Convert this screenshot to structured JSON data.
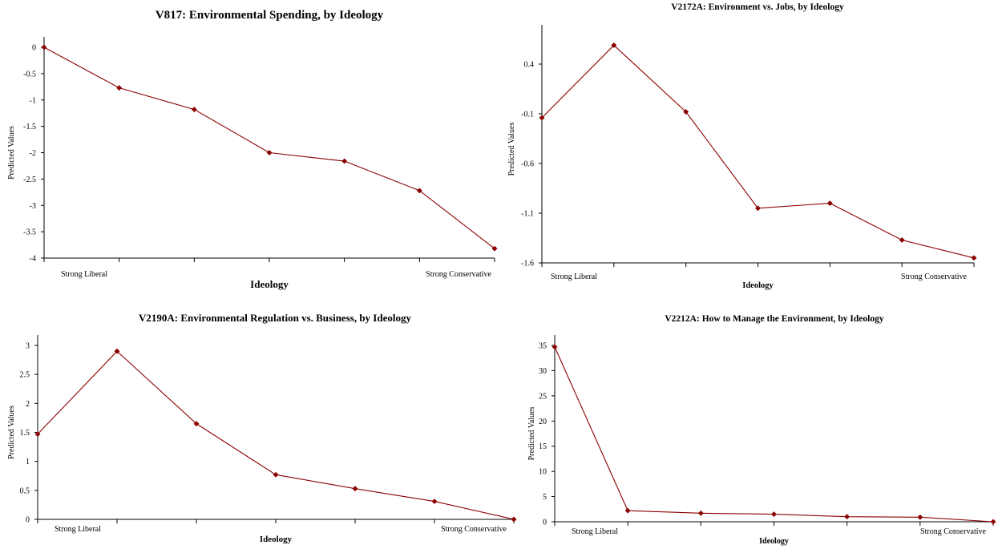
{
  "colors": {
    "series": "#8b0000",
    "axis": "#000000",
    "background": "#ffffff"
  },
  "chart_data": [
    {
      "type": "line",
      "title": "V817:  Environmental Spending, by Ideology",
      "xlabel": "Ideology",
      "ylabel": "Predicted Values",
      "x_end_labels": [
        "Strong Liberal",
        "Strong Conservative"
      ],
      "yticks": [
        "0",
        "-0.5",
        "-1",
        "-1.5",
        "-2",
        "-2.5",
        "-3",
        "-3.5",
        "-4"
      ],
      "ylim": [
        -4,
        0
      ],
      "grid": false,
      "x": [
        1,
        2,
        3,
        4,
        5,
        6,
        7
      ],
      "values": [
        0,
        -0.77,
        -1.18,
        -2.0,
        -2.16,
        -2.72,
        -3.82
      ]
    },
    {
      "type": "line",
      "title": "V2172A:  Environment vs. Jobs, by Ideology",
      "xlabel": "Ideology",
      "ylabel": "Predicted Values",
      "x_end_labels": [
        "Strong Liberal",
        "Strong Conservative"
      ],
      "yticks": [
        "0.4",
        "-0.1",
        "-0.6",
        "-1.1",
        "-1.6"
      ],
      "ylim": [
        -1.6,
        0.63
      ],
      "grid": false,
      "x": [
        1,
        2,
        3,
        4,
        5,
        6,
        7
      ],
      "values": [
        -0.14,
        0.59,
        -0.08,
        -1.05,
        -1.0,
        -1.37,
        -1.55
      ]
    },
    {
      "type": "line",
      "title": "V2190A:  Environmental Regulation vs. Business, by Ideology",
      "xlabel": "Ideology",
      "ylabel": "Predicted Values",
      "x_end_labels": [
        "Strong Liberal",
        "Strong Conservative"
      ],
      "yticks": [
        "3",
        "2.5",
        "2",
        "1.5",
        "1",
        "0.5",
        "0"
      ],
      "ylim": [
        0,
        3
      ],
      "grid": false,
      "x": [
        1,
        2,
        3,
        4,
        5,
        6,
        7
      ],
      "values": [
        1.47,
        2.9,
        1.65,
        0.77,
        0.53,
        0.31,
        0
      ]
    },
    {
      "type": "line",
      "title": "V2212A:  How to Manage the Environment, by Ideology",
      "xlabel": "Ideology",
      "ylabel": "Predicted Values",
      "x_end_labels": [
        "Strong Liberal",
        "Strong Conservative"
      ],
      "yticks": [
        "35",
        "30",
        "25",
        "20",
        "15",
        "10",
        "5",
        "0"
      ],
      "ylim": [
        0,
        35
      ],
      "grid": false,
      "x": [
        1,
        2,
        3,
        4,
        5,
        6,
        7
      ],
      "values": [
        34.7,
        2.2,
        1.7,
        1.5,
        1.0,
        0.9,
        0
      ]
    }
  ]
}
